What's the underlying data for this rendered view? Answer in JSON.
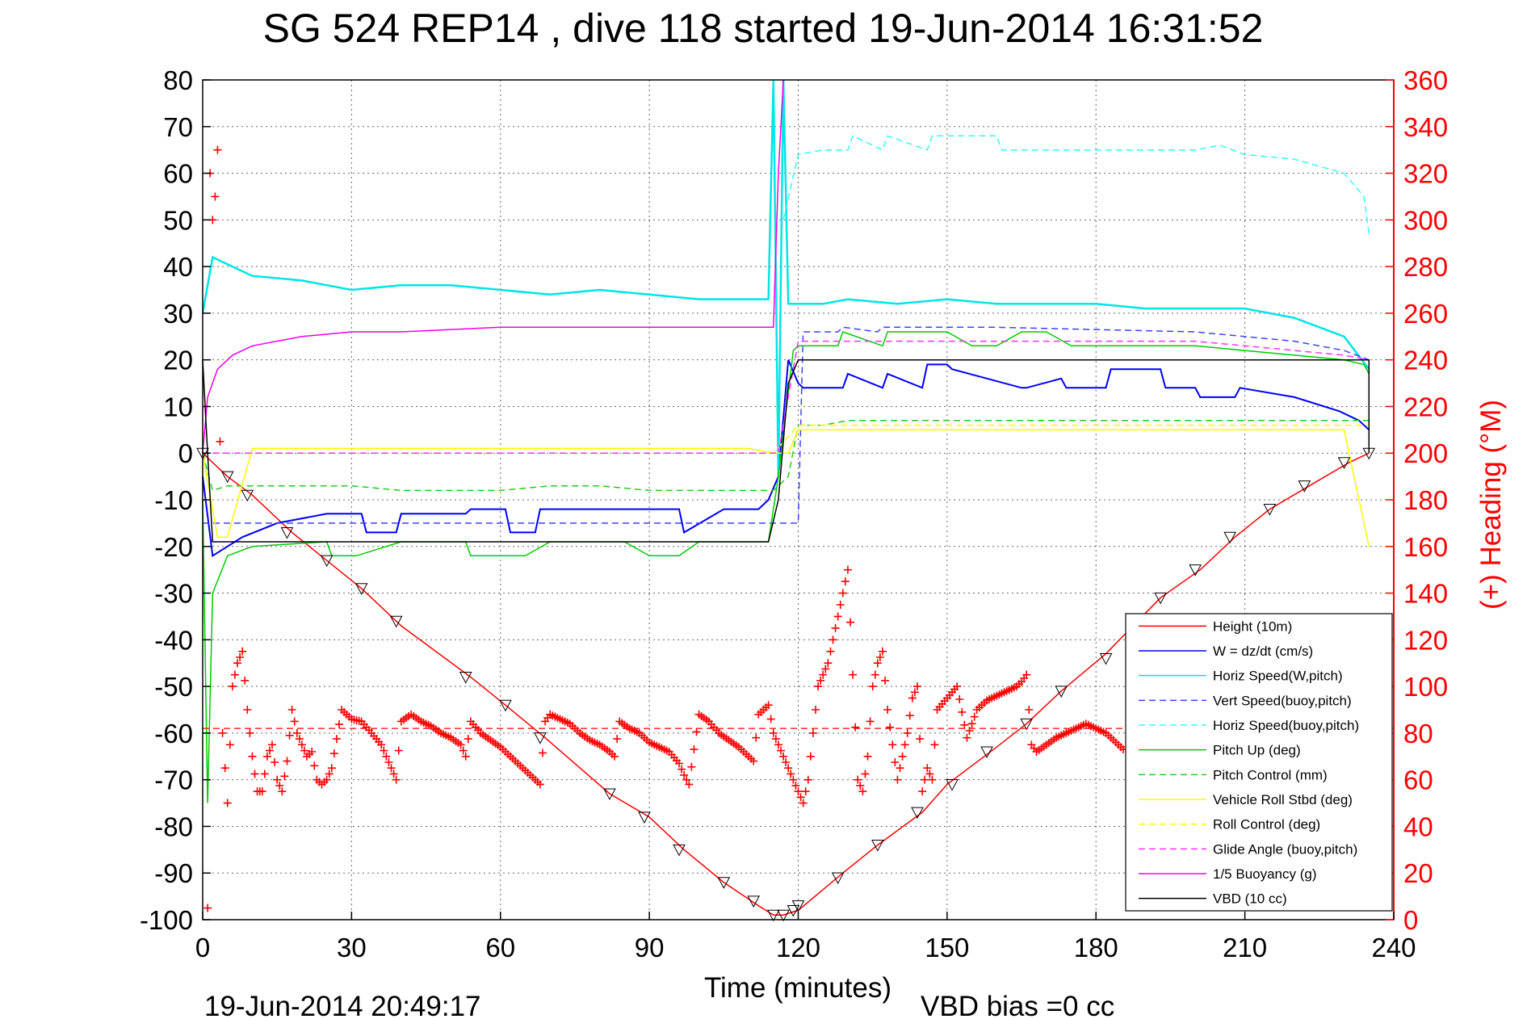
{
  "chart_data": {
    "type": "line",
    "title": "SG 524   REP14  , dive 118 started 19-Jun-2014 16:31:52",
    "xlabel": "Time (minutes)",
    "ylabel_right": "(+) Heading (°M)",
    "footer_left": "19-Jun-2014 20:49:17",
    "footer_right": "VBD bias =0 cc",
    "xlim": [
      0,
      240
    ],
    "ylim": [
      -100,
      80
    ],
    "ylim_right": [
      0,
      360
    ],
    "xticks": [
      "0",
      "30",
      "60",
      "90",
      "120",
      "150",
      "180",
      "210",
      "240"
    ],
    "yticks": [
      "80",
      "70",
      "60",
      "50",
      "40",
      "30",
      "20",
      "10",
      "0",
      "-10",
      "-20",
      "-30",
      "-40",
      "-50",
      "-60",
      "-70",
      "-80",
      "-90",
      "-100"
    ],
    "yticks_right": [
      "360",
      "340",
      "320",
      "300",
      "280",
      "260",
      "240",
      "220",
      "200",
      "180",
      "160",
      "140",
      "120",
      "100",
      "80",
      "60",
      "40",
      "20",
      "0"
    ],
    "grid": true,
    "legend_position": "bottom-right",
    "colors": {
      "height": "#ff0000",
      "w": "#0000ff",
      "horiz": "#00e5e5",
      "vert_buoy": "#4040ff",
      "horiz_buoy": "#33ffff",
      "pitch": "#00cc00",
      "pitch_ctrl": "#22cc22",
      "roll": "#ffff00",
      "roll_ctrl": "#ffff00",
      "glide": "#ff33ff",
      "buoy": "#ee00ee",
      "vbd": "#000000",
      "heading": "#ff0000"
    },
    "series": [
      {
        "name": "Height (10m)",
        "key": "height",
        "x": [
          0,
          5,
          10,
          18,
          25,
          32,
          40,
          54,
          61,
          69,
          82,
          90,
          97,
          105,
          112,
          115,
          117,
          120,
          129,
          136,
          145,
          150,
          160,
          166,
          173,
          182,
          193,
          201,
          208,
          215,
          223,
          231,
          235
        ],
        "y": [
          0,
          -5,
          -9,
          -17,
          -23,
          -29,
          -37,
          -48,
          -54,
          -61,
          -73,
          -78,
          -85,
          -92,
          -97,
          -99,
          -99,
          -98,
          -90,
          -84,
          -77,
          -71,
          -63,
          -58,
          -51,
          -43,
          -31,
          -25,
          -18,
          -12,
          -7,
          -2,
          0
        ]
      },
      {
        "name": "W = dz/dt (cm/s)",
        "key": "w",
        "x": [
          0,
          2,
          8,
          15,
          25,
          32,
          33,
          39,
          40,
          53,
          54,
          61,
          62,
          67,
          68,
          82,
          83,
          96,
          97,
          105,
          112,
          114,
          116,
          118,
          120,
          121,
          129,
          130,
          137,
          138,
          145,
          146,
          150,
          151,
          165,
          166,
          173,
          174,
          182,
          183,
          193,
          194,
          200,
          201,
          208,
          209,
          220,
          229,
          233,
          235
        ],
        "y": [
          -5,
          -22,
          -18,
          -15,
          -13,
          -13,
          -17,
          -17,
          -13,
          -13,
          -12,
          -12,
          -17,
          -17,
          -12,
          -12,
          -12,
          -12,
          -17,
          -12,
          -12,
          -10,
          -5,
          20,
          15,
          14,
          14,
          17,
          14,
          17,
          14,
          19,
          19,
          18,
          14,
          14,
          16,
          14,
          14,
          18,
          18,
          14,
          14,
          12,
          12,
          14,
          12,
          9,
          7,
          5
        ]
      },
      {
        "name": "Horiz Speed(W,pitch)",
        "key": "horiz",
        "x": [
          0,
          2,
          10,
          20,
          30,
          40,
          50,
          60,
          70,
          80,
          90,
          100,
          110,
          114,
          115,
          116,
          117,
          118,
          120,
          125,
          130,
          140,
          150,
          160,
          170,
          180,
          190,
          200,
          210,
          220,
          230,
          235
        ],
        "y": [
          30,
          42,
          38,
          37,
          35,
          36,
          36,
          35,
          34,
          35,
          34,
          33,
          33,
          33,
          80,
          -5,
          80,
          32,
          32,
          32,
          33,
          32,
          33,
          32,
          32,
          32,
          31,
          31,
          31,
          29,
          25,
          18
        ]
      },
      {
        "name": "Vert Speed(buoy,pitch)",
        "key": "vert_buoy",
        "x": [
          0,
          120,
          121,
          128,
          129,
          136,
          137,
          145,
          146,
          158,
          159,
          200,
          210,
          220,
          230,
          235
        ],
        "y": [
          -15,
          -15,
          26,
          26,
          27,
          26,
          27,
          27,
          27,
          27,
          27,
          26,
          25,
          24,
          22,
          20
        ]
      },
      {
        "name": "Horiz Speed(buoy,pitch)",
        "key": "horiz_buoy",
        "x": [
          117,
          120,
          125,
          130,
          131,
          137,
          138,
          146,
          147,
          160,
          161,
          200,
          205,
          210,
          220,
          230,
          234,
          235
        ],
        "y": [
          50,
          64,
          65,
          65,
          68,
          65,
          68,
          65,
          68,
          68,
          65,
          65,
          66,
          64,
          63,
          60,
          55,
          47
        ]
      },
      {
        "name": "Pitch Up (deg)",
        "key": "pitch",
        "x": [
          0,
          1,
          2,
          5,
          10,
          25,
          26,
          31,
          40,
          53,
          54,
          60,
          65,
          70,
          85,
          90,
          96,
          100,
          110,
          114,
          116,
          119,
          120,
          125,
          128,
          129,
          137,
          138,
          150,
          155,
          160,
          165,
          170,
          175,
          185,
          195,
          200,
          210,
          220,
          230,
          234,
          235
        ],
        "y": [
          -10,
          -75,
          -30,
          -22,
          -20,
          -19,
          -22,
          -22,
          -19,
          -19,
          -22,
          -22,
          -22,
          -19,
          -19,
          -22,
          -22,
          -19,
          -19,
          -19,
          -5,
          22,
          23,
          23,
          23,
          26,
          23,
          26,
          26,
          23,
          23,
          26,
          26,
          23,
          23,
          23,
          23,
          22,
          21,
          20,
          19,
          17
        ]
      },
      {
        "name": "Pitch Control (mm)",
        "key": "pitch_ctrl",
        "x": [
          0,
          2,
          5,
          10,
          20,
          30,
          40,
          50,
          60,
          70,
          80,
          90,
          100,
          110,
          115,
          118,
          120,
          125,
          130,
          140,
          150,
          160,
          170,
          180,
          190,
          200,
          210,
          220,
          230,
          235
        ],
        "y": [
          0,
          -8,
          -7,
          -7,
          -7,
          -7,
          -8,
          -8,
          -8,
          -7,
          -7,
          -8,
          -8,
          -8,
          -8,
          -5,
          6,
          6,
          7,
          7,
          7,
          7,
          7,
          7,
          7,
          7,
          7,
          7,
          7,
          7
        ]
      },
      {
        "name": "Vehicle Roll Stbd (deg)",
        "key": "roll",
        "x": [
          0,
          3,
          5,
          10,
          20,
          30,
          40,
          50,
          60,
          70,
          80,
          90,
          100,
          110,
          115,
          118,
          120,
          125,
          130,
          140,
          150,
          160,
          170,
          180,
          190,
          200,
          210,
          220,
          230,
          235
        ],
        "y": [
          0,
          -18,
          -18,
          1,
          1,
          1,
          1,
          1,
          1,
          1,
          1,
          1,
          1,
          1,
          0,
          0,
          5,
          5,
          5,
          5,
          5,
          5,
          5,
          5,
          5,
          5,
          5,
          5,
          5,
          -20
        ]
      },
      {
        "name": "Roll Control (deg)",
        "key": "roll_ctrl",
        "x": [
          0,
          5,
          10,
          20,
          30,
          40,
          50,
          60,
          70,
          80,
          90,
          100,
          110,
          115,
          120,
          130,
          140,
          150,
          160,
          170,
          180,
          190,
          200,
          210,
          220,
          230,
          235
        ],
        "y": [
          0,
          0,
          0,
          0,
          0,
          0,
          0,
          0,
          0,
          0,
          0,
          0,
          0,
          0,
          6,
          6,
          6,
          6,
          6,
          6,
          6,
          6,
          6,
          6,
          6,
          6,
          6
        ]
      },
      {
        "name": "Glide Angle (buoy,pitch)",
        "key": "glide",
        "x": [
          0,
          115,
          116,
          120,
          200,
          210,
          220,
          230,
          235
        ],
        "y": [
          0,
          0,
          0,
          24,
          24,
          23,
          22,
          21,
          20
        ]
      },
      {
        "name": "1/5 Buoyancy (g)",
        "key": "buoy",
        "x": [
          0,
          1,
          3,
          6,
          10,
          20,
          30,
          40,
          60,
          80,
          100,
          114,
          115,
          116,
          117
        ],
        "y": [
          0,
          12,
          18,
          21,
          23,
          25,
          26,
          26,
          27,
          27,
          27,
          27,
          27,
          60,
          80
        ]
      },
      {
        "name": "VBD (10 cc)",
        "key": "vbd",
        "x": [
          0,
          1,
          2,
          114,
          116,
          118,
          120,
          235,
          235
        ],
        "y": [
          20,
          0,
          -19,
          -19,
          -10,
          15,
          20,
          20,
          0
        ]
      }
    ],
    "heading_series": {
      "axis": "right",
      "reference_line": 82,
      "x": [
        1,
        1.5,
        2,
        2.5,
        3,
        4,
        5,
        6,
        7,
        8,
        9,
        10,
        11,
        12,
        13,
        14,
        15,
        16,
        17,
        18,
        19,
        20,
        21,
        22,
        23,
        24,
        25,
        26,
        28,
        30,
        32,
        34,
        36,
        38,
        39,
        40,
        42,
        44,
        46,
        48,
        50,
        52,
        53,
        54,
        56,
        58,
        60,
        62,
        64,
        66,
        68,
        69,
        70,
        72,
        74,
        76,
        78,
        80,
        82,
        83,
        84,
        86,
        88,
        90,
        92,
        94,
        96,
        97,
        98,
        100,
        102,
        104,
        106,
        108,
        110,
        111,
        112,
        113,
        114,
        115,
        116,
        117,
        118,
        119,
        120,
        121,
        122,
        124,
        126,
        127,
        128,
        129,
        130,
        132,
        133,
        134,
        135,
        136,
        137,
        138,
        140,
        142,
        143,
        144,
        145,
        146,
        147,
        148,
        150,
        152,
        154,
        156,
        158,
        160,
        162,
        164,
        165,
        166,
        167,
        168,
        170,
        172,
        174,
        176,
        178,
        180,
        182,
        184,
        186
      ],
      "y": [
        5,
        320,
        300,
        310,
        330,
        80,
        50,
        100,
        110,
        115,
        90,
        70,
        55,
        55,
        70,
        75,
        60,
        55,
        68,
        90,
        80,
        75,
        70,
        72,
        60,
        58,
        60,
        65,
        90,
        86,
        85,
        80,
        75,
        65,
        60,
        85,
        88,
        85,
        83,
        80,
        78,
        75,
        70,
        85,
        80,
        77,
        74,
        70,
        66,
        62,
        58,
        85,
        88,
        86,
        84,
        80,
        77,
        75,
        72,
        70,
        85,
        82,
        80,
        76,
        74,
        72,
        67,
        62,
        58,
        88,
        85,
        80,
        77,
        74,
        70,
        68,
        88,
        90,
        92,
        80,
        75,
        70,
        65,
        60,
        55,
        50,
        60,
        100,
        110,
        120,
        130,
        140,
        150,
        60,
        55,
        70,
        100,
        110,
        115,
        90,
        60,
        80,
        95,
        100,
        55,
        65,
        60,
        90,
        95,
        100,
        78,
        90,
        94,
        96,
        98,
        100,
        102,
        105,
        75,
        72,
        75,
        78,
        80,
        82,
        84,
        82,
        80,
        76,
        72
      ]
    },
    "triangle_markers": {
      "x": [
        0,
        5,
        9,
        17,
        25,
        32,
        39,
        53,
        61,
        68,
        82,
        89,
        96,
        105,
        111,
        115,
        117,
        119,
        120,
        128,
        136,
        144,
        151,
        158,
        166,
        173,
        182,
        193,
        200,
        207,
        215,
        222,
        230,
        235
      ],
      "y": [
        0,
        -5,
        -9,
        -17,
        -23,
        -29,
        -36,
        -48,
        -54,
        -61,
        -73,
        -78,
        -85,
        -92,
        -96,
        -99,
        -99,
        -98,
        -97,
        -91,
        -84,
        -77,
        -71,
        -64,
        -58,
        -51,
        -44,
        -31,
        -25,
        -18,
        -12,
        -7,
        -2,
        0
      ]
    }
  }
}
